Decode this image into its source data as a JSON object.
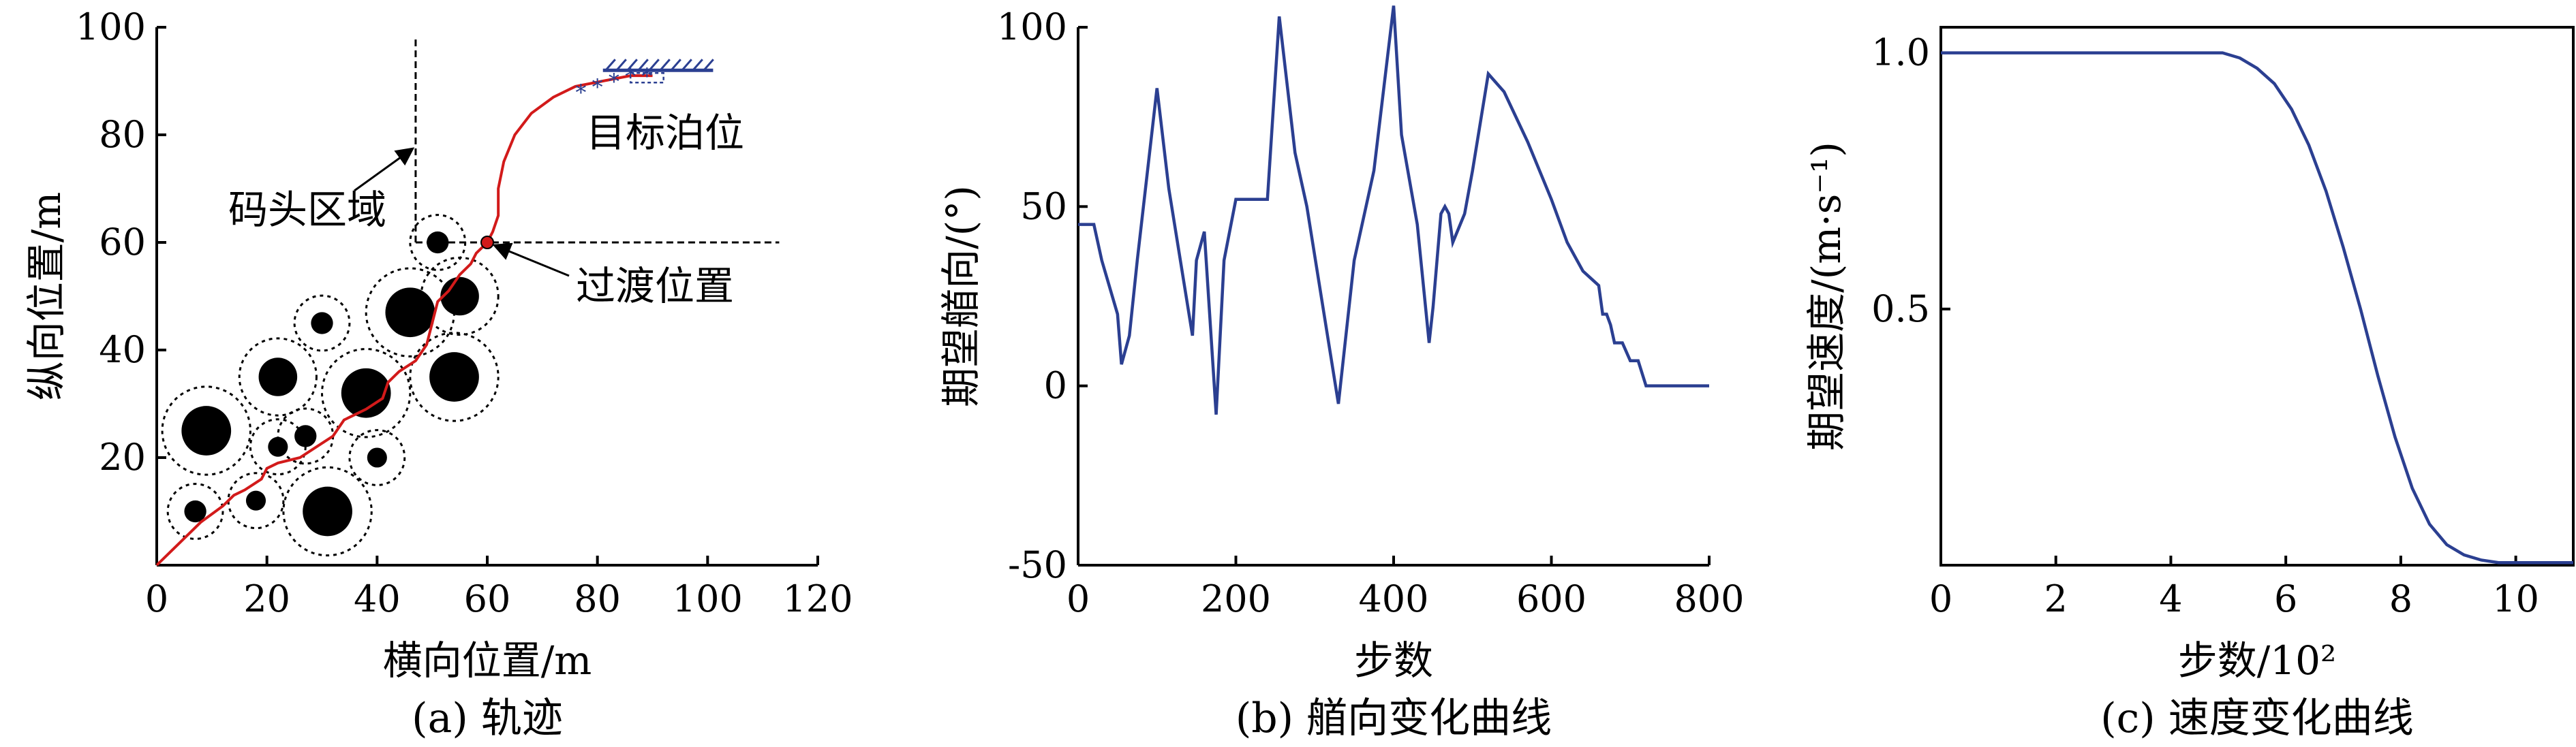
{
  "chart_data": [
    {
      "type": "scatter",
      "panel_caption": "(a) 轨迹",
      "xlabel": "横向位置/m",
      "ylabel": "纵向位置/m",
      "xlim": [
        0,
        120
      ],
      "ylim": [
        0,
        100
      ],
      "xticks": [
        0,
        20,
        40,
        60,
        80,
        100,
        120
      ],
      "yticks": [
        20,
        40,
        60,
        80,
        100
      ],
      "obstacles": [
        {
          "x": 7,
          "y": 10,
          "r": 2,
          "safe_r": 5
        },
        {
          "x": 18,
          "y": 12,
          "r": 1.8,
          "safe_r": 5
        },
        {
          "x": 31,
          "y": 10,
          "r": 4.5,
          "safe_r": 8
        },
        {
          "x": 9,
          "y": 25,
          "r": 4.5,
          "safe_r": 8
        },
        {
          "x": 22,
          "y": 22,
          "r": 1.8,
          "safe_r": 5
        },
        {
          "x": 27,
          "y": 24,
          "r": 2,
          "safe_r": 5
        },
        {
          "x": 40,
          "y": 20,
          "r": 1.8,
          "safe_r": 5
        },
        {
          "x": 22,
          "y": 35,
          "r": 3.5,
          "safe_r": 7
        },
        {
          "x": 30,
          "y": 45,
          "r": 2,
          "safe_r": 5
        },
        {
          "x": 38,
          "y": 32,
          "r": 4.5,
          "safe_r": 8
        },
        {
          "x": 46,
          "y": 47,
          "r": 4.5,
          "safe_r": 8
        },
        {
          "x": 54,
          "y": 35,
          "r": 4.5,
          "safe_r": 8
        },
        {
          "x": 55,
          "y": 50,
          "r": 3.5,
          "safe_r": 7
        },
        {
          "x": 51,
          "y": 60,
          "r": 2,
          "safe_r": 5
        }
      ],
      "trajectory": [
        [
          0,
          0
        ],
        [
          4,
          4
        ],
        [
          8,
          8
        ],
        [
          12,
          11
        ],
        [
          14,
          13
        ],
        [
          16,
          14
        ],
        [
          19,
          16
        ],
        [
          20,
          18
        ],
        [
          22,
          19
        ],
        [
          26,
          20
        ],
        [
          29,
          22
        ],
        [
          32,
          24
        ],
        [
          34,
          27
        ],
        [
          36,
          28
        ],
        [
          38,
          29
        ],
        [
          41,
          31
        ],
        [
          42,
          34
        ],
        [
          44,
          36
        ],
        [
          47,
          38
        ],
        [
          49,
          41
        ],
        [
          50,
          45
        ],
        [
          51,
          49
        ],
        [
          53,
          51
        ],
        [
          55,
          54
        ],
        [
          57,
          56
        ],
        [
          58,
          58
        ],
        [
          60,
          60
        ],
        [
          61,
          62
        ],
        [
          62,
          65
        ],
        [
          62,
          70
        ],
        [
          63,
          75
        ],
        [
          65,
          80
        ],
        [
          68,
          84
        ],
        [
          72,
          87
        ],
        [
          76,
          89
        ],
        [
          81,
          90
        ],
        [
          86,
          91
        ],
        [
          90,
          91
        ]
      ],
      "trajectory_markers": [
        [
          77,
          88
        ],
        [
          80,
          89
        ],
        [
          83,
          90
        ],
        [
          86,
          91
        ],
        [
          89,
          91
        ]
      ],
      "transition_point": [
        60,
        60
      ],
      "dock_boundary": {
        "vertical_x": 47,
        "vertical_y_range": [
          60,
          98
        ],
        "horizontal_y": 60,
        "horizontal_x_range": [
          47,
          113
        ]
      },
      "berth_line": {
        "y": 92,
        "x_range": [
          81,
          101
        ]
      },
      "annotations": {
        "dock_area": "码头区域",
        "target_berth": "目标泊位",
        "transition": "过渡位置"
      }
    },
    {
      "type": "line",
      "panel_caption": "(b) 艏向变化曲线",
      "xlabel": "步数",
      "ylabel": "期望艏向/(°)",
      "xlim": [
        0,
        800
      ],
      "ylim": [
        -50,
        100
      ],
      "xticks": [
        0,
        200,
        400,
        600,
        800
      ],
      "yticks": [
        -50,
        0,
        50,
        100
      ],
      "series": [
        {
          "x": [
            0,
            20,
            30,
            50,
            55,
            65,
            75,
            100,
            115,
            145,
            150,
            160,
            175,
            185,
            200,
            240,
            255,
            275,
            290,
            330,
            350,
            375,
            400,
            410,
            430,
            445,
            450,
            460,
            465,
            470,
            475,
            490,
            500,
            520,
            540,
            570,
            600,
            620,
            640,
            650,
            660,
            665,
            670,
            675,
            680,
            690,
            700,
            710,
            720,
            750,
            800
          ],
          "y": [
            45,
            45,
            35,
            20,
            6,
            14,
            35,
            83,
            55,
            14,
            35,
            43,
            -8,
            35,
            52,
            52,
            103,
            65,
            50,
            -5,
            35,
            60,
            106,
            70,
            45,
            12,
            22,
            48,
            50,
            48,
            40,
            48,
            60,
            87,
            82,
            68,
            52,
            40,
            32,
            30,
            28,
            20,
            20,
            17,
            12,
            12,
            7,
            7,
            0,
            0,
            0
          ]
        }
      ]
    },
    {
      "type": "line",
      "panel_caption": "(c) 速度变化曲线",
      "xlabel": "步数/10²",
      "ylabel": "期望速度/(m·s⁻¹)",
      "xlim": [
        0,
        11
      ],
      "ylim": [
        0,
        1.05
      ],
      "xticks": [
        0,
        2,
        4,
        6,
        8,
        10
      ],
      "yticks": [
        0.5,
        1.0
      ],
      "xtick_labels": [
        "0",
        "2",
        "4",
        "6",
        "8",
        "10"
      ],
      "ytick_labels": [
        "0.5",
        "1.0"
      ],
      "series": [
        {
          "x": [
            0,
            4.0,
            4.9,
            5.2,
            5.5,
            5.8,
            6.1,
            6.4,
            6.7,
            7.0,
            7.3,
            7.6,
            7.9,
            8.2,
            8.5,
            8.8,
            9.1,
            9.4,
            9.7,
            10.0,
            11.0
          ],
          "y": [
            1.0,
            1.0,
            1.0,
            0.99,
            0.97,
            0.94,
            0.89,
            0.82,
            0.73,
            0.62,
            0.5,
            0.37,
            0.25,
            0.15,
            0.08,
            0.04,
            0.02,
            0.01,
            0.005,
            0.005,
            0.005
          ]
        }
      ]
    }
  ]
}
